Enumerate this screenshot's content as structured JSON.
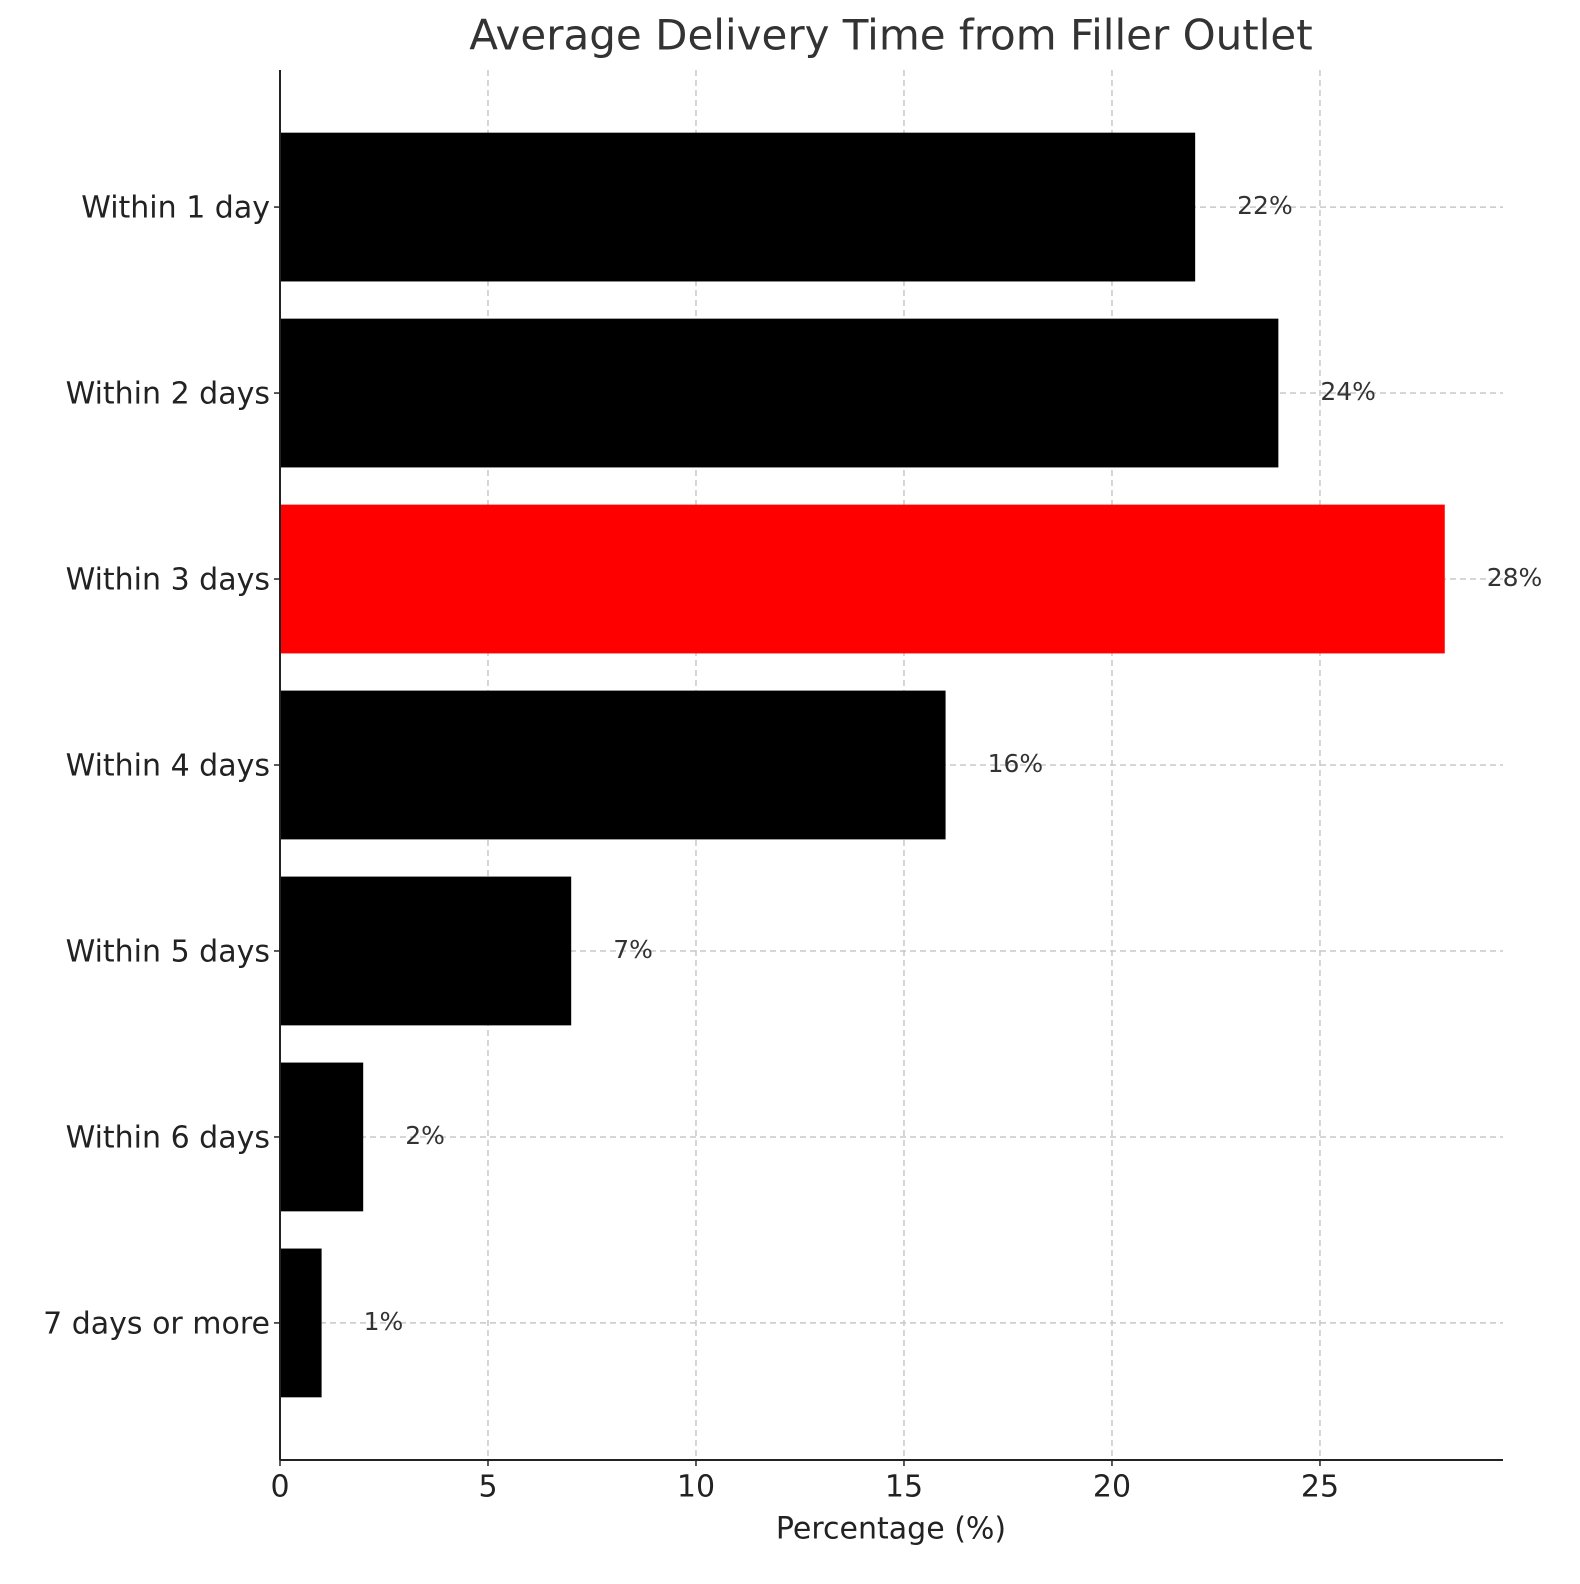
{
  "chart_data": {
    "type": "bar",
    "orientation": "horizontal",
    "title": "Average Delivery Time from Filler Outlet",
    "x_label": "Percentage (%)",
    "categories": [
      "Within 1 day",
      "Within 2 days",
      "Within 3 days",
      "Within 4 days",
      "Within 5 days",
      "Within 6 days",
      "7 days or more"
    ],
    "values": [
      22,
      24,
      28,
      16,
      7,
      2,
      1
    ],
    "value_labels": [
      "22%",
      "24%",
      "28%",
      "16%",
      "7%",
      "2%",
      "1%"
    ],
    "colors": [
      "#000000",
      "#000000",
      "#ff0000",
      "#000000",
      "#000000",
      "#000000",
      "#000000"
    ],
    "xlim": [
      0,
      29.4
    ],
    "xticks": [
      0,
      5,
      10,
      15,
      20,
      25
    ],
    "grid": true
  }
}
